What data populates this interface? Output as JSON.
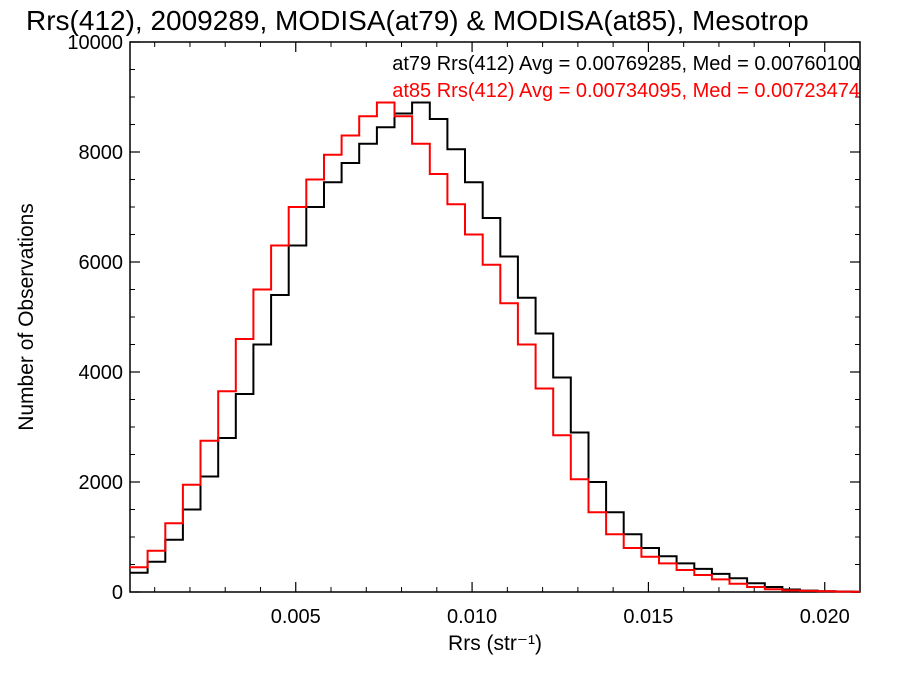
{
  "chart_data": {
    "type": "line",
    "step": true,
    "title": "Rrs(412), 2009289, MODISA(at79) & MODISA(at85), Mesotrop",
    "xlabel": "Rrs (str⁻¹)",
    "ylabel": "Number of Observations",
    "xlim": [
      0.0003,
      0.021
    ],
    "ylim": [
      0,
      10000
    ],
    "xticks": [
      0.005,
      0.01,
      0.015,
      0.02
    ],
    "xtick_labels": [
      "0.005",
      "0.010",
      "0.015",
      "0.020"
    ],
    "yticks": [
      0,
      2000,
      4000,
      6000,
      8000,
      10000
    ],
    "ytick_labels": [
      "0",
      "2000",
      "4000",
      "6000",
      "8000",
      "10000"
    ],
    "grid": false,
    "annotations": [
      {
        "text": "at79 Rrs(412) Avg = 0.00769285, Med = 0.00760100",
        "color": "#000000"
      },
      {
        "text": "at85 Rrs(412) Avg = 0.00734095, Med = 0.00723474",
        "color": "#ff0000"
      }
    ],
    "series": [
      {
        "color": "#000000",
        "x": [
          0.0003,
          0.0008,
          0.0013,
          0.0018,
          0.0023,
          0.0028,
          0.0033,
          0.0038,
          0.0043,
          0.0048,
          0.0053,
          0.0058,
          0.0063,
          0.0068,
          0.0073,
          0.0078,
          0.0083,
          0.0088,
          0.0093,
          0.0098,
          0.0103,
          0.0108,
          0.0113,
          0.0118,
          0.0123,
          0.0128,
          0.0133,
          0.0138,
          0.0143,
          0.0148,
          0.0153,
          0.0158,
          0.0163,
          0.0168,
          0.0173,
          0.0178,
          0.0183,
          0.0188,
          0.0193,
          0.0198,
          0.0203,
          0.0208
        ],
        "y": [
          350,
          550,
          950,
          1500,
          2100,
          2800,
          3600,
          4500,
          5400,
          6300,
          7000,
          7450,
          7800,
          8150,
          8450,
          8700,
          8900,
          8600,
          8050,
          7450,
          6800,
          6100,
          5350,
          4700,
          3900,
          2900,
          2000,
          1450,
          1050,
          800,
          650,
          520,
          420,
          330,
          250,
          160,
          90,
          45,
          25,
          15,
          10,
          5
        ]
      },
      {
        "color": "#ff0000",
        "x": [
          0.0003,
          0.0008,
          0.0013,
          0.0018,
          0.0023,
          0.0028,
          0.0033,
          0.0038,
          0.0043,
          0.0048,
          0.0053,
          0.0058,
          0.0063,
          0.0068,
          0.0073,
          0.0078,
          0.0083,
          0.0088,
          0.0093,
          0.0098,
          0.0103,
          0.0108,
          0.0113,
          0.0118,
          0.0123,
          0.0128,
          0.0133,
          0.0138,
          0.0143,
          0.0148,
          0.0153,
          0.0158,
          0.0163,
          0.0168,
          0.0173,
          0.0178,
          0.0183,
          0.0188,
          0.0193,
          0.0198,
          0.0203,
          0.0208
        ],
        "y": [
          450,
          750,
          1250,
          1950,
          2750,
          3650,
          4600,
          5500,
          6300,
          7000,
          7500,
          7950,
          8300,
          8650,
          8900,
          8650,
          8150,
          7600,
          7050,
          6500,
          5950,
          5250,
          4500,
          3700,
          2850,
          2050,
          1450,
          1050,
          800,
          640,
          520,
          400,
          310,
          230,
          150,
          90,
          50,
          30,
          20,
          12,
          8,
          5
        ]
      }
    ]
  }
}
